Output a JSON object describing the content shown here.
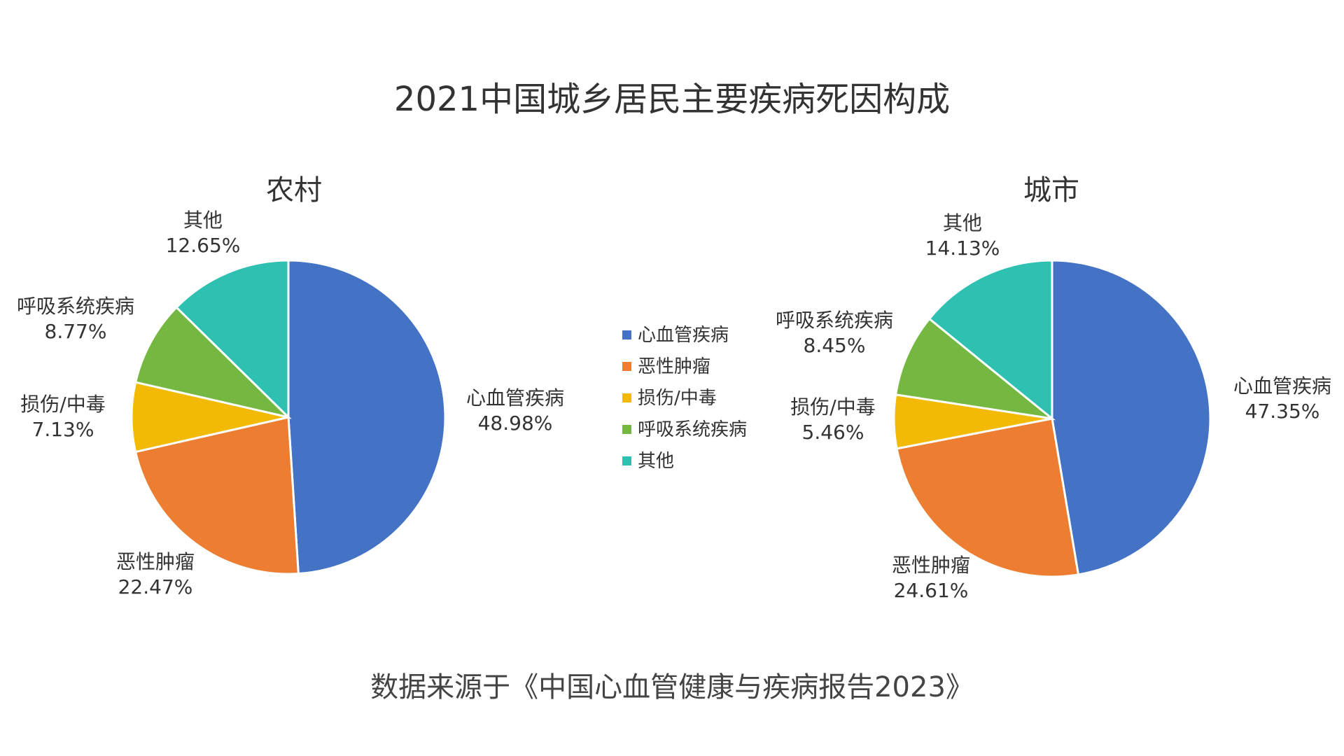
{
  "title": "2021中国城乡居民主要疾病死因构成",
  "source": "数据来源于《中国心血管健康与疾病报告2023》",
  "chart_data": [
    {
      "type": "pie",
      "title": "农村",
      "categories": [
        "心血管疾病",
        "恶性肿瘤",
        "损伤/中毒",
        "呼吸系统疾病",
        "其他"
      ],
      "values": [
        48.98,
        22.47,
        7.13,
        8.77,
        12.65
      ],
      "value_labels": [
        "48.98%",
        "22.47%",
        "7.13%",
        "8.77%",
        "12.65%"
      ],
      "start": "12 o'clock",
      "direction": "clockwise"
    },
    {
      "type": "pie",
      "title": "城市",
      "categories": [
        "心血管疾病",
        "恶性肿瘤",
        "损伤/中毒",
        "呼吸系统疾病",
        "其他"
      ],
      "values": [
        47.35,
        24.61,
        5.46,
        8.45,
        14.13
      ],
      "value_labels": [
        "47.35%",
        "24.61%",
        "5.46%",
        "8.45%",
        "14.13%"
      ],
      "start": "12 o'clock",
      "direction": "clockwise"
    }
  ],
  "legend": {
    "placement": "center",
    "items": [
      "心血管疾病",
      "恶性肿瘤",
      "损伤/中毒",
      "呼吸系统疾病",
      "其他"
    ]
  },
  "colors": [
    "#4472C4",
    "#ED7D31",
    "#F2BA02",
    "#74B841",
    "#2EC0B0"
  ]
}
